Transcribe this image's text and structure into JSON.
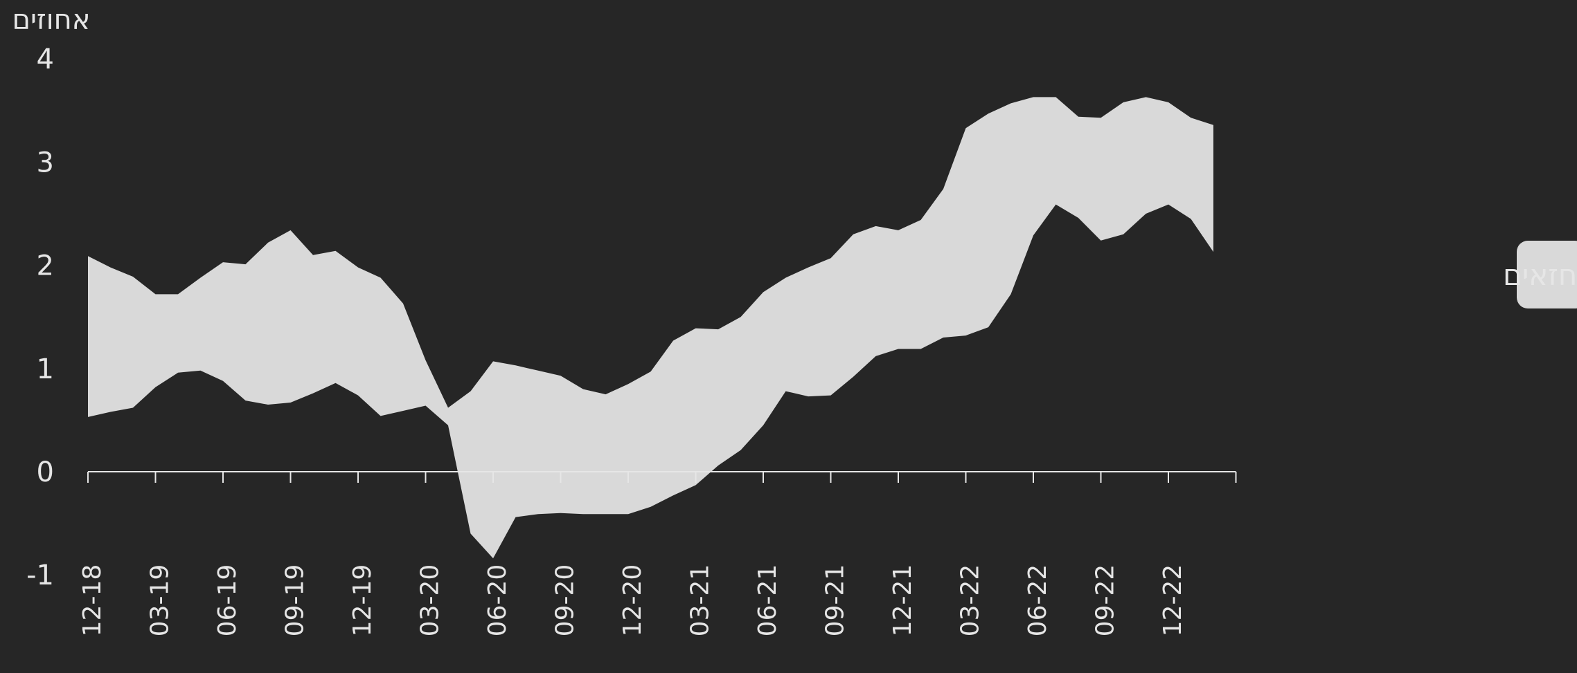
{
  "chart_data": {
    "type": "area",
    "ylabel": "אחוזים",
    "ylim": [
      -1,
      4
    ],
    "y_ticks": [
      -1,
      0,
      1,
      2,
      3,
      4
    ],
    "x_tick_labels": [
      "12-18",
      "03-19",
      "06-19",
      "09-19",
      "12-19",
      "03-20",
      "06-20",
      "09-20",
      "12-20",
      "03-21",
      "06-21",
      "09-21",
      "12-21",
      "03-22",
      "06-22",
      "09-22",
      "12-22"
    ],
    "legend": {
      "position": "right",
      "label": "טווח החזאים"
    },
    "colors": {
      "band": "#d9d9d9",
      "axis": "#e6e6e6",
      "background": "#262626"
    },
    "grid": false,
    "series": [
      {
        "name": "טווח החזאים",
        "x": [
          "12-18",
          "01-19",
          "02-19",
          "03-19",
          "04-19",
          "05-19",
          "06-19",
          "07-19",
          "08-19",
          "09-19",
          "10-19",
          "11-19",
          "12-19",
          "01-20",
          "02-20",
          "03-20",
          "04-20",
          "05-20",
          "06-20",
          "07-20",
          "08-20",
          "09-20",
          "10-20",
          "11-20",
          "12-20",
          "01-21",
          "02-21",
          "03-21",
          "04-21",
          "05-21",
          "06-21",
          "07-21",
          "08-21",
          "09-21",
          "10-21",
          "11-21",
          "12-21",
          "01-22",
          "02-22",
          "03-22",
          "04-22",
          "05-22",
          "06-22",
          "07-22",
          "08-22",
          "09-22",
          "10-22",
          "11-22",
          "12-22",
          "01-23",
          "02-23"
        ],
        "upper": [
          2.09,
          1.98,
          1.89,
          1.72,
          1.72,
          1.88,
          2.03,
          2.01,
          2.22,
          2.34,
          2.1,
          2.14,
          1.98,
          1.88,
          1.63,
          1.08,
          0.62,
          0.78,
          1.07,
          1.03,
          0.98,
          0.93,
          0.8,
          0.75,
          0.85,
          0.97,
          1.27,
          1.39,
          1.38,
          1.5,
          1.74,
          1.88,
          1.98,
          2.07,
          2.3,
          2.38,
          2.34,
          2.44,
          2.74,
          3.33,
          3.47,
          3.57,
          3.63,
          3.63,
          3.44,
          3.43,
          3.58,
          3.63,
          3.58,
          3.43,
          3.36
        ],
        "lower": [
          0.53,
          0.58,
          0.62,
          0.82,
          0.96,
          0.98,
          0.88,
          0.69,
          0.65,
          0.67,
          0.76,
          0.86,
          0.74,
          0.54,
          0.59,
          0.64,
          0.45,
          -0.6,
          -0.84,
          -0.44,
          -0.41,
          -0.4,
          -0.41,
          -0.41,
          -0.41,
          -0.34,
          -0.23,
          -0.13,
          0.06,
          0.21,
          0.45,
          0.78,
          0.73,
          0.74,
          0.92,
          1.12,
          1.19,
          1.19,
          1.3,
          1.32,
          1.4,
          1.72,
          2.29,
          2.59,
          2.46,
          2.24,
          2.3,
          2.5,
          2.59,
          2.45,
          2.13
        ]
      }
    ]
  }
}
